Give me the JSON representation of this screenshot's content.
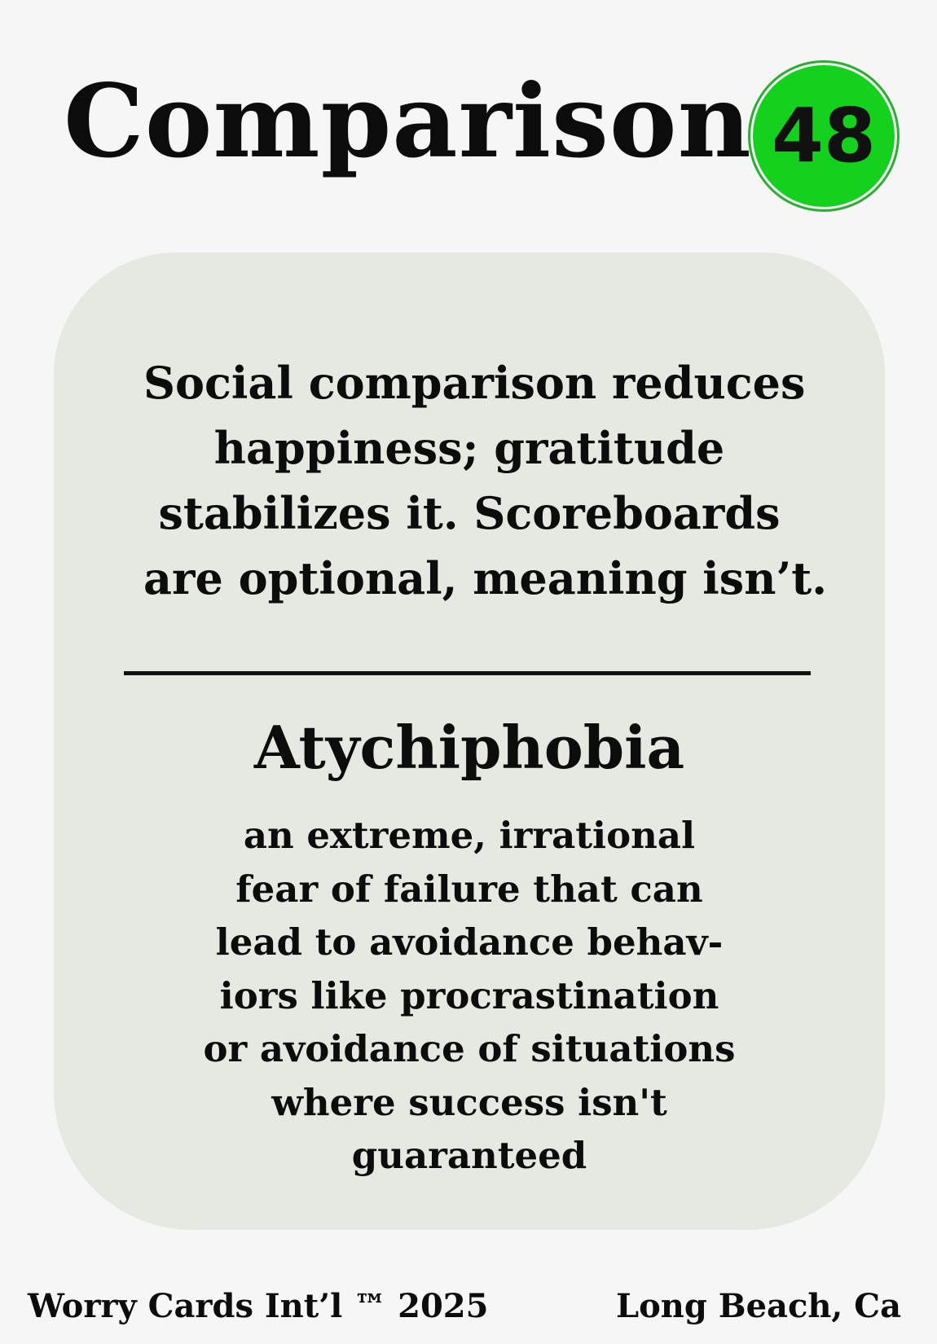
{
  "card": {
    "title": "Comparison",
    "number": "48",
    "badge_color": "#14d11e",
    "panel_color": "#e6e9e1",
    "quote_lines": [
      "Social comparison reduces",
      "happiness; gratitude",
      "stabilizes it. Scoreboards",
      "are optional, meaning isn’t."
    ],
    "term": "Atychiphobia",
    "definition_lines": [
      "an extreme, irrational",
      "fear of failure that can",
      "lead to avoidance behav-",
      "iors like procrastination",
      "or avoidance of situations",
      "where success isn't",
      "guaranteed"
    ]
  },
  "footer": {
    "left": "Worry Cards Int’l ™ 2025",
    "right": "Long Beach, Ca"
  }
}
